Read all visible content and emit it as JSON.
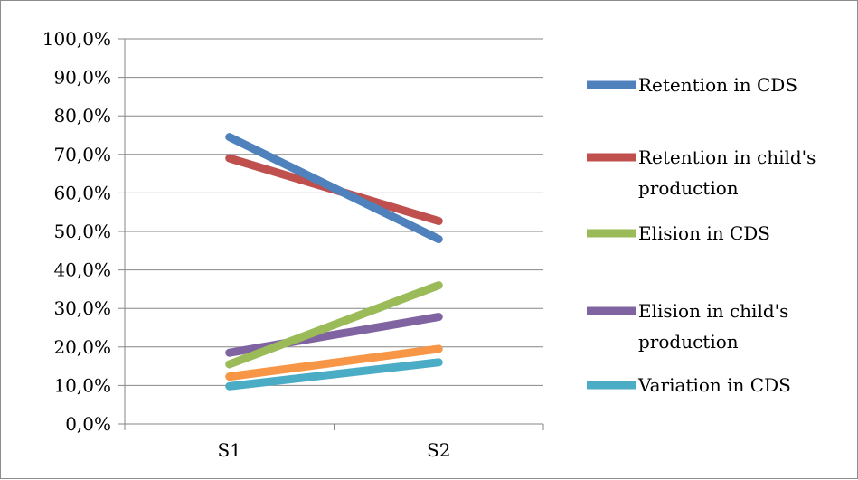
{
  "chart_data": {
    "type": "line",
    "categories": [
      "S1",
      "S2"
    ],
    "ylim": [
      0,
      100
    ],
    "y_ticks": [
      "0,0%",
      "10,0%",
      "20,0%",
      "30,0%",
      "40,0%",
      "50,0%",
      "60,0%",
      "70,0%",
      "80,0%",
      "90,0%",
      "100,0%"
    ],
    "grid": true,
    "legend_position": "right",
    "series": [
      {
        "name": "Retention in CDS",
        "label_lines": [
          "Retention in CDS"
        ],
        "color": "#4f81bd",
        "values": [
          74.5,
          48.0
        ]
      },
      {
        "name": "Retention in child's production",
        "label_lines": [
          "Retention in child's",
          "production"
        ],
        "color": "#c0504d",
        "values": [
          69.0,
          52.7
        ]
      },
      {
        "name": "Elision in CDS",
        "label_lines": [
          "Elision in CDS"
        ],
        "color": "#9bbb59",
        "values": [
          15.5,
          36.0
        ]
      },
      {
        "name": "Elision in child's production",
        "label_lines": [
          "Elision in child's",
          "production"
        ],
        "color": "#8064a2",
        "values": [
          18.5,
          27.8
        ]
      },
      {
        "name": "Variation in CDS",
        "label_lines": [
          "Variation in CDS"
        ],
        "color": "#4bacc6",
        "values": [
          9.8,
          16.0
        ]
      },
      {
        "name": "",
        "label_lines": [],
        "color": "#f79646",
        "values": [
          12.3,
          19.5
        ]
      }
    ]
  }
}
